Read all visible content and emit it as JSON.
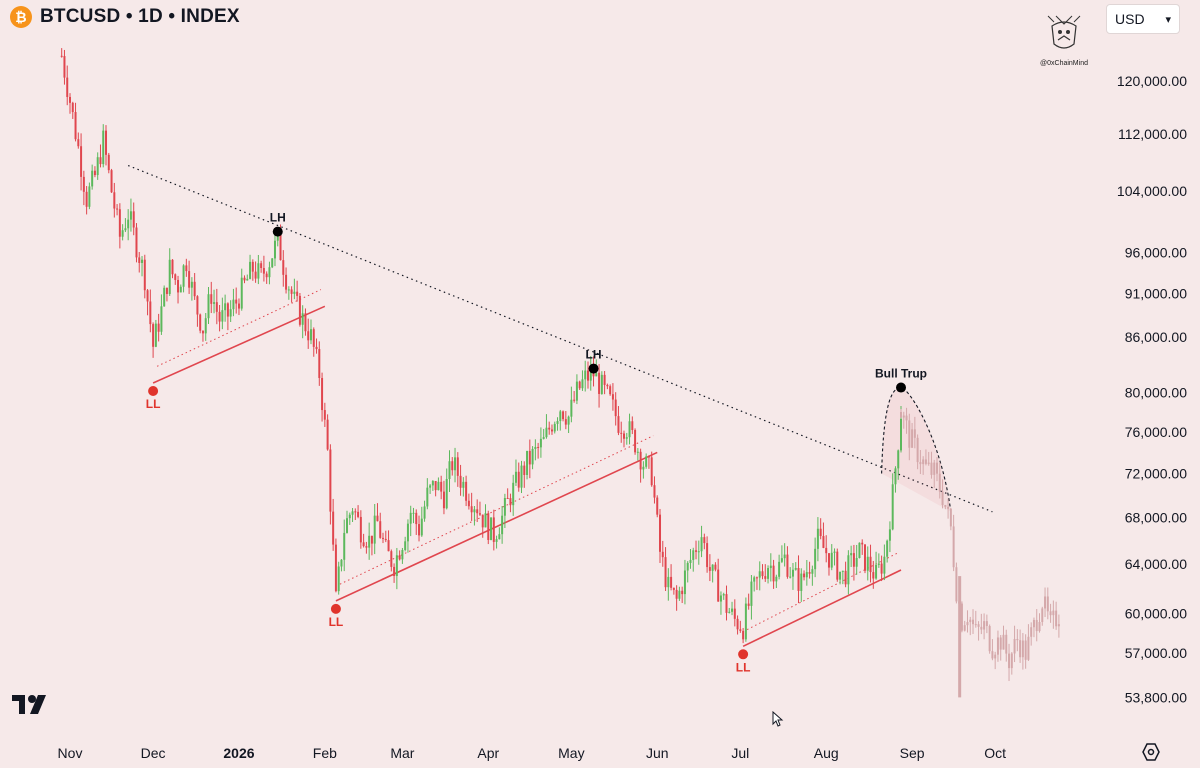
{
  "header": {
    "symbol_title": "BTCUSD • 1D • INDEX",
    "logo_glyph": "₿"
  },
  "currency": {
    "value": "USD"
  },
  "watermark": {
    "handle": "@0xChainMind"
  },
  "colors": {
    "up": "#5cb85c",
    "down": "#e0464e",
    "projection": "#d4a8aa",
    "label_red": "#e0342c"
  },
  "chart_data": {
    "type": "candlestick",
    "scale": "log",
    "ylim": [
      51500,
      130000
    ],
    "y_ticks": [
      "120,000.00",
      "112,000.00",
      "104,000.00",
      "96,000.00",
      "91,000.00",
      "86,000.00",
      "80,000.00",
      "76,000.00",
      "72,000.00",
      "68,000.00",
      "64,000.00",
      "60,000.00",
      "57,000.00",
      "53,800.00"
    ],
    "x_ticks": [
      "Nov",
      "Dec",
      "2026",
      "Feb",
      "Mar",
      "Apr",
      "May",
      "Jun",
      "Jul",
      "Aug",
      "Sep",
      "Oct"
    ],
    "path_actual": [
      [
        "Oct 29",
        124000
      ],
      [
        "Nov 1",
        117000
      ],
      [
        "Nov 4",
        110000
      ],
      [
        "Nov 7",
        103000
      ],
      [
        "Nov 10",
        106000
      ],
      [
        "Nov 13",
        111000
      ],
      [
        "Nov 16",
        104000
      ],
      [
        "Nov 19",
        98000
      ],
      [
        "Nov 22",
        101000
      ],
      [
        "Nov 25",
        97000
      ],
      [
        "Nov 28",
        93000
      ],
      [
        "Dec 1",
        85000
      ],
      [
        "Dec 4",
        89000
      ],
      [
        "Dec 7",
        94000
      ],
      [
        "Dec 10",
        92000
      ],
      [
        "Dec 13",
        95000
      ],
      [
        "Dec 16",
        90000
      ],
      [
        "Dec 19",
        87000
      ],
      [
        "Dec 22",
        91000
      ],
      [
        "Dec 25",
        88000
      ],
      [
        "Dec 28",
        88500
      ],
      [
        "Dec 31",
        90000
      ],
      [
        "Jan 3",
        92000
      ],
      [
        "Jan 6",
        94000
      ],
      [
        "Jan 9",
        93000
      ],
      [
        "Jan 12",
        95000
      ],
      [
        "Jan 15",
        97500
      ],
      [
        "Jan 18",
        93000
      ],
      [
        "Jan 21",
        90000
      ],
      [
        "Jan 24",
        88000
      ],
      [
        "Jan 27",
        86000
      ],
      [
        "Jan 30",
        82000
      ],
      [
        "Feb 2",
        74000
      ],
      [
        "Feb 5",
        61000
      ],
      [
        "Feb 8",
        67000
      ],
      [
        "Feb 11",
        69000
      ],
      [
        "Feb 14",
        67000
      ],
      [
        "Feb 17",
        66000
      ],
      [
        "Feb 20",
        67500
      ],
      [
        "Feb 23",
        65000
      ],
      [
        "Feb 26",
        64000
      ],
      [
        "Mar 1",
        66000
      ],
      [
        "Mar 4",
        68500
      ],
      [
        "Mar 7",
        67000
      ],
      [
        "Mar 10",
        70000
      ],
      [
        "Mar 13",
        71000
      ],
      [
        "Mar 16",
        70000
      ],
      [
        "Mar 19",
        73000
      ],
      [
        "Mar 22",
        71500
      ],
      [
        "Mar 25",
        70000
      ],
      [
        "Mar 28",
        69000
      ],
      [
        "Mar 31",
        67500
      ],
      [
        "Apr 3",
        66500
      ],
      [
        "Apr 6",
        68000
      ],
      [
        "Apr 9",
        70000
      ],
      [
        "Apr 12",
        71500
      ],
      [
        "Apr 15",
        73000
      ],
      [
        "Apr 18",
        74000
      ],
      [
        "Apr 21",
        75000
      ],
      [
        "Apr 24",
        77000
      ],
      [
        "Apr 27",
        78500
      ],
      [
        "Apr 30",
        77500
      ],
      [
        "May 3",
        80000
      ],
      [
        "May 6",
        81500
      ],
      [
        "May 9",
        82000
      ],
      [
        "May 12",
        80500
      ],
      [
        "May 15",
        79000
      ],
      [
        "May 18",
        77000
      ],
      [
        "May 21",
        76500
      ],
      [
        "May 24",
        75000
      ],
      [
        "May 27",
        73000
      ],
      [
        "May 30",
        72000
      ],
      [
        "Jun 2",
        65000
      ],
      [
        "Jun 5",
        62000
      ],
      [
        "Jun 8",
        61000
      ],
      [
        "Jun 11",
        63000
      ],
      [
        "Jun 14",
        65000
      ],
      [
        "Jun 17",
        66500
      ],
      [
        "Jun 20",
        63500
      ],
      [
        "Jun 23",
        62000
      ],
      [
        "Jun 26",
        60500
      ],
      [
        "Jun 29",
        59500
      ],
      [
        "Jul 2",
        59000
      ],
      [
        "Jul 5",
        61500
      ],
      [
        "Jul 8",
        63000
      ],
      [
        "Jul 11",
        64000
      ],
      [
        "Jul 14",
        63500
      ],
      [
        "Jul 17",
        64500
      ],
      [
        "Jul 20",
        63000
      ],
      [
        "Jul 23",
        62500
      ],
      [
        "Jul 26",
        64000
      ],
      [
        "Jul 29",
        66000
      ],
      [
        "Aug 1",
        65000
      ],
      [
        "Aug 4",
        64000
      ],
      [
        "Aug 7",
        63000
      ],
      [
        "Aug 10",
        64000
      ],
      [
        "Aug 13",
        65000
      ],
      [
        "Aug 16",
        64000
      ],
      [
        "Aug 19",
        63000
      ],
      [
        "Aug 22",
        64500
      ],
      [
        "Aug 25",
        70000
      ],
      [
        "Aug 28",
        78000
      ]
    ],
    "path_projection": [
      [
        "Aug 28",
        78000
      ],
      [
        "Aug 31",
        75500
      ],
      [
        "Sep 3",
        74000
      ],
      [
        "Sep 6",
        72500
      ],
      [
        "Sep 9",
        72000
      ],
      [
        "Sep 12",
        70000
      ],
      [
        "Sep 15",
        67000
      ],
      [
        "Sep 17",
        62000
      ],
      [
        "Sep 19",
        59500
      ],
      [
        "Sep 21",
        60000
      ],
      [
        "Sep 24",
        58500
      ],
      [
        "Sep 27",
        59000
      ],
      [
        "Sep 30",
        57500
      ],
      [
        "Oct 3",
        58000
      ],
      [
        "Oct 6",
        56500
      ],
      [
        "Oct 9",
        58000
      ],
      [
        "Oct 12",
        57000
      ],
      [
        "Oct 15",
        59000
      ],
      [
        "Oct 18",
        61000
      ],
      [
        "Oct 21",
        59000
      ],
      [
        "Oct 24",
        60000
      ]
    ],
    "spikes": [
      [
        "Sep 18",
        53800,
        63000
      ]
    ],
    "trendlines": {
      "descending_resistance": [
        [
          "Nov 22",
          107500
        ],
        [
          "Sep 30",
          68500
        ]
      ],
      "support_1": [
        [
          "Dec 1",
          81000
        ],
        [
          "Feb 1",
          89500
        ]
      ],
      "support_2": [
        [
          "Feb 5",
          61000
        ],
        [
          "Jun 1",
          74000
        ]
      ],
      "support_3": [
        [
          "Jul 2",
          57500
        ],
        [
          "Aug 28",
          63500
        ]
      ]
    },
    "projection_arc": [
      [
        "Aug 21",
        72000
      ],
      [
        "Aug 28",
        80500
      ],
      [
        "Sep 3",
        79000
      ],
      [
        "Sep 10",
        74500
      ],
      [
        "Sep 15",
        68500
      ]
    ],
    "annotations": [
      {
        "label": "LL",
        "date": "Dec 1",
        "price": 81000,
        "type": "low"
      },
      {
        "label": "LH",
        "date": "Jan 15",
        "price": 98000,
        "type": "high"
      },
      {
        "label": "LL",
        "date": "Feb 5",
        "price": 61000,
        "type": "low"
      },
      {
        "label": "LH",
        "date": "May 9",
        "price": 82000,
        "type": "high"
      },
      {
        "label": "LL",
        "date": "Jul 2",
        "price": 57500,
        "type": "low"
      },
      {
        "label": "Bull Trup",
        "date": "Aug 28",
        "price": 80000,
        "type": "high"
      }
    ]
  }
}
